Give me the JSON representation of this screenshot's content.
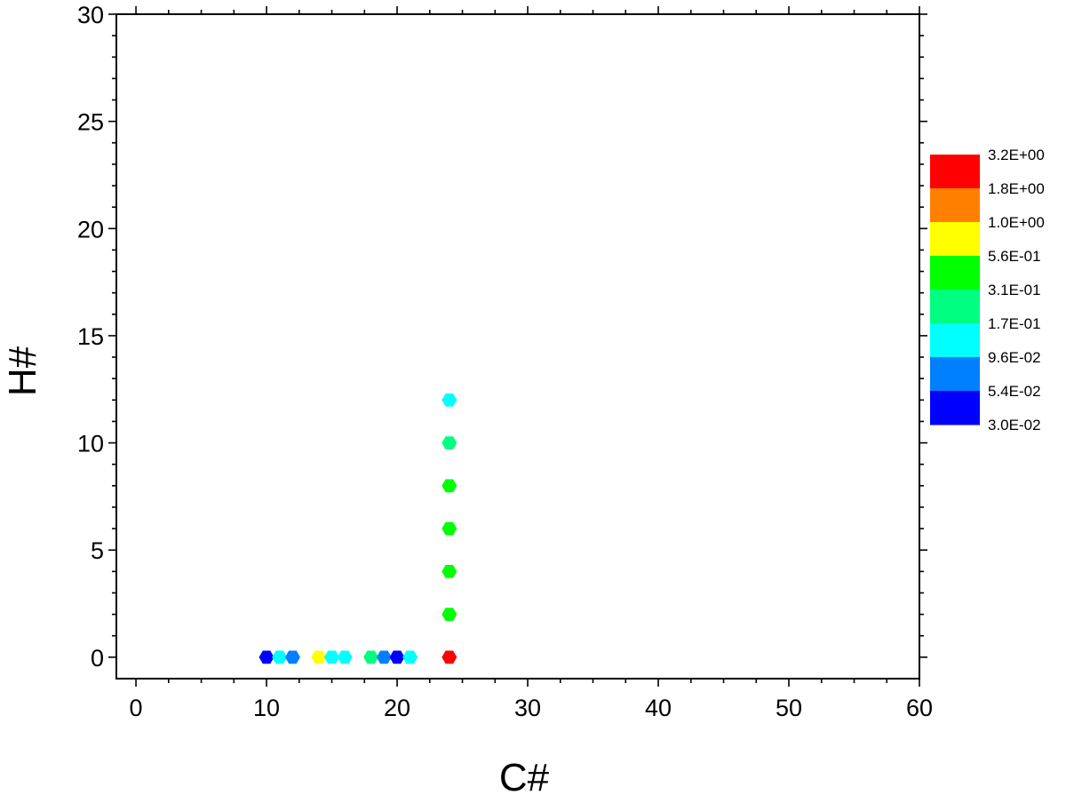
{
  "chart_data": {
    "type": "scatter",
    "title": "",
    "xlabel": "C#",
    "ylabel": "H#",
    "xlim": [
      -1.5,
      60
    ],
    "ylim": [
      -1,
      30
    ],
    "x_ticks": [
      0,
      10,
      20,
      30,
      40,
      50,
      60
    ],
    "y_ticks": [
      0,
      5,
      10,
      15,
      20,
      25,
      30
    ],
    "marker": "hexagon",
    "grid": false,
    "legend_position": "right",
    "colorbar": {
      "labels": [
        "3.2E+00",
        "1.8E+00",
        "1.0E+00",
        "5.6E-01",
        "3.1E-01",
        "1.7E-01",
        "9.6E-02",
        "5.4E-02",
        "3.0E-02"
      ],
      "colors": [
        "#ff0000",
        "#ff8000",
        "#ffff00",
        "#00ff00",
        "#00ff80",
        "#00ffff",
        "#0080ff",
        "#0000ff"
      ]
    },
    "points": [
      {
        "x": 10,
        "y": 0,
        "color": "#0000ff"
      },
      {
        "x": 11,
        "y": 0,
        "color": "#00ffff"
      },
      {
        "x": 12,
        "y": 0,
        "color": "#0080ff"
      },
      {
        "x": 14,
        "y": 0,
        "color": "#ffff00"
      },
      {
        "x": 15,
        "y": 0,
        "color": "#00ffff"
      },
      {
        "x": 16,
        "y": 0,
        "color": "#00ffff"
      },
      {
        "x": 18,
        "y": 0,
        "color": "#00ff80"
      },
      {
        "x": 19,
        "y": 0,
        "color": "#0080ff"
      },
      {
        "x": 20,
        "y": 0,
        "color": "#0000ff"
      },
      {
        "x": 21,
        "y": 0,
        "color": "#00ffff"
      },
      {
        "x": 24,
        "y": 0,
        "color": "#ff0000"
      },
      {
        "x": 24,
        "y": 2,
        "color": "#00ff00"
      },
      {
        "x": 24,
        "y": 4,
        "color": "#00ff00"
      },
      {
        "x": 24,
        "y": 6,
        "color": "#00ff00"
      },
      {
        "x": 24,
        "y": 8,
        "color": "#00ff00"
      },
      {
        "x": 24,
        "y": 10,
        "color": "#00ff80"
      },
      {
        "x": 24,
        "y": 12,
        "color": "#00ffff"
      }
    ]
  }
}
